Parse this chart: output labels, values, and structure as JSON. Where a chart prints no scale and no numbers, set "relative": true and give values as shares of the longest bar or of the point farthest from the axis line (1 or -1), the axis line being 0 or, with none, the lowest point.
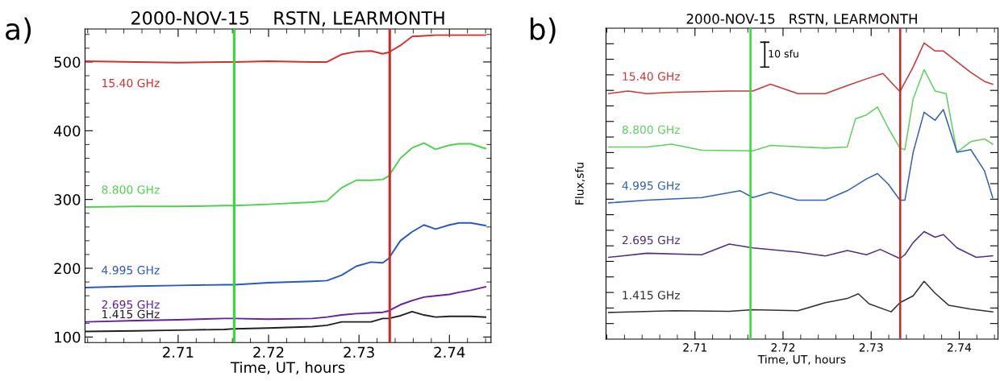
{
  "chart_data": [
    {
      "type": "line",
      "title": "2000-NOV-15    RSTN, LEARMONTH",
      "xlabel": "Time, UT, hours",
      "annotations": [
        "a)"
      ],
      "xlim": [
        2.6997,
        2.7446
      ],
      "xticks": [
        2.71,
        2.72,
        2.73,
        2.74
      ],
      "ylim": [
        92,
        548
      ],
      "yticks": [
        100,
        200,
        300,
        400,
        500
      ],
      "grid": false,
      "legend": false,
      "x": [
        2.69984,
        2.70536,
        2.71,
        2.7151,
        2.71623,
        2.71997,
        2.72484,
        2.72646,
        2.72808,
        2.7297,
        2.73133,
        2.73263,
        2.73328,
        2.73458,
        2.73588,
        2.73718,
        2.73847,
        2.74,
        2.74107,
        2.74237,
        2.74399
      ],
      "ref_lines": [
        {
          "axis": "x",
          "value": 2.7162,
          "color": "#30dd30"
        },
        {
          "axis": "x",
          "value": 2.7334,
          "color": "#d02828"
        }
      ],
      "series": [
        {
          "name": "15.40 GHz",
          "color": "#d03030",
          "values": [
            501,
            500,
            499,
            500,
            500,
            501,
            500,
            500,
            511,
            515,
            516,
            512,
            514,
            524,
            537,
            538,
            539,
            539,
            539,
            539,
            539
          ]
        },
        {
          "name": "8.800 GHz",
          "color": "#50d050",
          "values": [
            289,
            290,
            290,
            291,
            291,
            293,
            296,
            298,
            317,
            328,
            328,
            329,
            334,
            360,
            375,
            382,
            373,
            379,
            381,
            381,
            374
          ]
        },
        {
          "name": "4.995 GHz",
          "color": "#2858c0",
          "values": [
            172,
            174,
            175,
            176,
            176,
            179,
            181,
            182,
            190,
            203,
            209,
            208,
            214,
            240,
            253,
            263,
            257,
            263,
            266,
            266,
            262
          ]
        },
        {
          "name": "2.695 GHz",
          "color": "#6020a0",
          "values": [
            122,
            124,
            125,
            127,
            127,
            126,
            127,
            129,
            132,
            134,
            135,
            136,
            138,
            147,
            153,
            158,
            160,
            162,
            165,
            168,
            173
          ]
        },
        {
          "name": "1.415 GHz",
          "color": "#202020",
          "values": [
            108,
            109,
            110,
            111,
            112,
            113,
            115,
            117,
            122,
            122,
            122,
            127,
            127,
            131,
            137,
            132,
            129,
            130,
            130,
            130,
            129
          ]
        }
      ]
    },
    {
      "type": "line",
      "title": "2000-NOV-15   RSTN, LEARMONTH",
      "xlabel": "Time, UT, hours",
      "ylabel": "Flux,sfu",
      "annotations": [
        "b)",
        "10 sfu"
      ],
      "relative": true,
      "tick_labels": "x",
      "grid": false,
      "legend": false,
      "xlim": [
        2.6999,
        2.7444
      ],
      "xticks": [
        2.71,
        2.72,
        2.73,
        2.74
      ],
      "ref_lines": [
        {
          "axis": "x",
          "value": 2.7163,
          "color": "#30dd30"
        },
        {
          "axis": "x",
          "value": 2.7333,
          "color": "#c82828"
        }
      ],
      "series": [
        {
          "name": "15.40 GHz",
          "color": "#c83838",
          "x": [
            2.70019,
            2.70237,
            2.70455,
            2.70766,
            2.71078,
            2.71389,
            2.71657,
            2.71857,
            2.72168,
            2.7248,
            2.72729,
            2.72947,
            2.73134,
            2.73327,
            2.73477,
            2.73601,
            2.73726,
            2.7382,
            2.73975,
            2.74131,
            2.74287,
            2.7438
          ],
          "values": [
            0.829,
            0.838,
            0.829,
            0.834,
            0.836,
            0.838,
            0.838,
            0.861,
            0.829,
            0.829,
            0.856,
            0.879,
            0.897,
            0.836,
            0.919,
            1.0,
            0.973,
            0.973,
            0.937,
            0.901,
            0.87,
            0.861
          ]
        },
        {
          "name": "8.800 GHz",
          "color": "#60d060",
          "x": [
            2.70019,
            2.70455,
            2.70735,
            2.71078,
            2.71657,
            2.71857,
            2.7248,
            2.72729,
            2.72822,
            2.72947,
            2.73072,
            2.73196,
            2.73327,
            2.73383,
            2.73477,
            2.73601,
            2.73726,
            2.7385,
            2.73975,
            2.74131,
            2.74287,
            2.7438
          ],
          "values": [
            0.649,
            0.649,
            0.658,
            0.638,
            0.636,
            0.654,
            0.645,
            0.649,
            0.744,
            0.757,
            0.784,
            0.712,
            0.645,
            0.64,
            0.811,
            0.91,
            0.838,
            0.829,
            0.631,
            0.667,
            0.676,
            0.658
          ]
        },
        {
          "name": "4.995 GHz",
          "color": "#3462b0",
          "x": [
            2.70019,
            2.70455,
            2.71078,
            2.71514,
            2.71657,
            2.71857,
            2.72168,
            2.7248,
            2.72729,
            2.72947,
            2.73072,
            2.73196,
            2.73327,
            2.73383,
            2.73477,
            2.73601,
            2.73726,
            2.7382,
            2.73975,
            2.74131,
            2.74287,
            2.7438
          ],
          "values": [
            0.46,
            0.469,
            0.478,
            0.501,
            0.478,
            0.496,
            0.469,
            0.469,
            0.501,
            0.541,
            0.559,
            0.523,
            0.469,
            0.469,
            0.631,
            0.766,
            0.739,
            0.775,
            0.631,
            0.64,
            0.568,
            0.478
          ]
        },
        {
          "name": "2.695 GHz",
          "color": "#503080",
          "x": [
            2.70019,
            2.70455,
            2.71078,
            2.71389,
            2.71657,
            2.72168,
            2.7248,
            2.72729,
            2.72947,
            2.73103,
            2.73327,
            2.73383,
            2.73477,
            2.73601,
            2.73726,
            2.7382,
            2.73975,
            2.74193,
            2.7438
          ],
          "values": [
            0.276,
            0.29,
            0.285,
            0.321,
            0.308,
            0.294,
            0.281,
            0.299,
            0.285,
            0.303,
            0.272,
            0.285,
            0.326,
            0.363,
            0.344,
            0.353,
            0.308,
            0.276,
            0.281
          ]
        },
        {
          "name": "1.415 GHz",
          "color": "#303030",
          "x": [
            2.70019,
            2.70766,
            2.71389,
            2.71657,
            2.72168,
            2.7248,
            2.72729,
            2.72854,
            2.72978,
            2.73227,
            2.73327,
            2.73477,
            2.73601,
            2.73726,
            2.73882,
            2.74131,
            2.7438
          ],
          "values": [
            0.09,
            0.096,
            0.094,
            0.099,
            0.096,
            0.123,
            0.137,
            0.153,
            0.119,
            0.092,
            0.123,
            0.146,
            0.195,
            0.155,
            0.114,
            0.101,
            0.092
          ]
        }
      ]
    }
  ]
}
